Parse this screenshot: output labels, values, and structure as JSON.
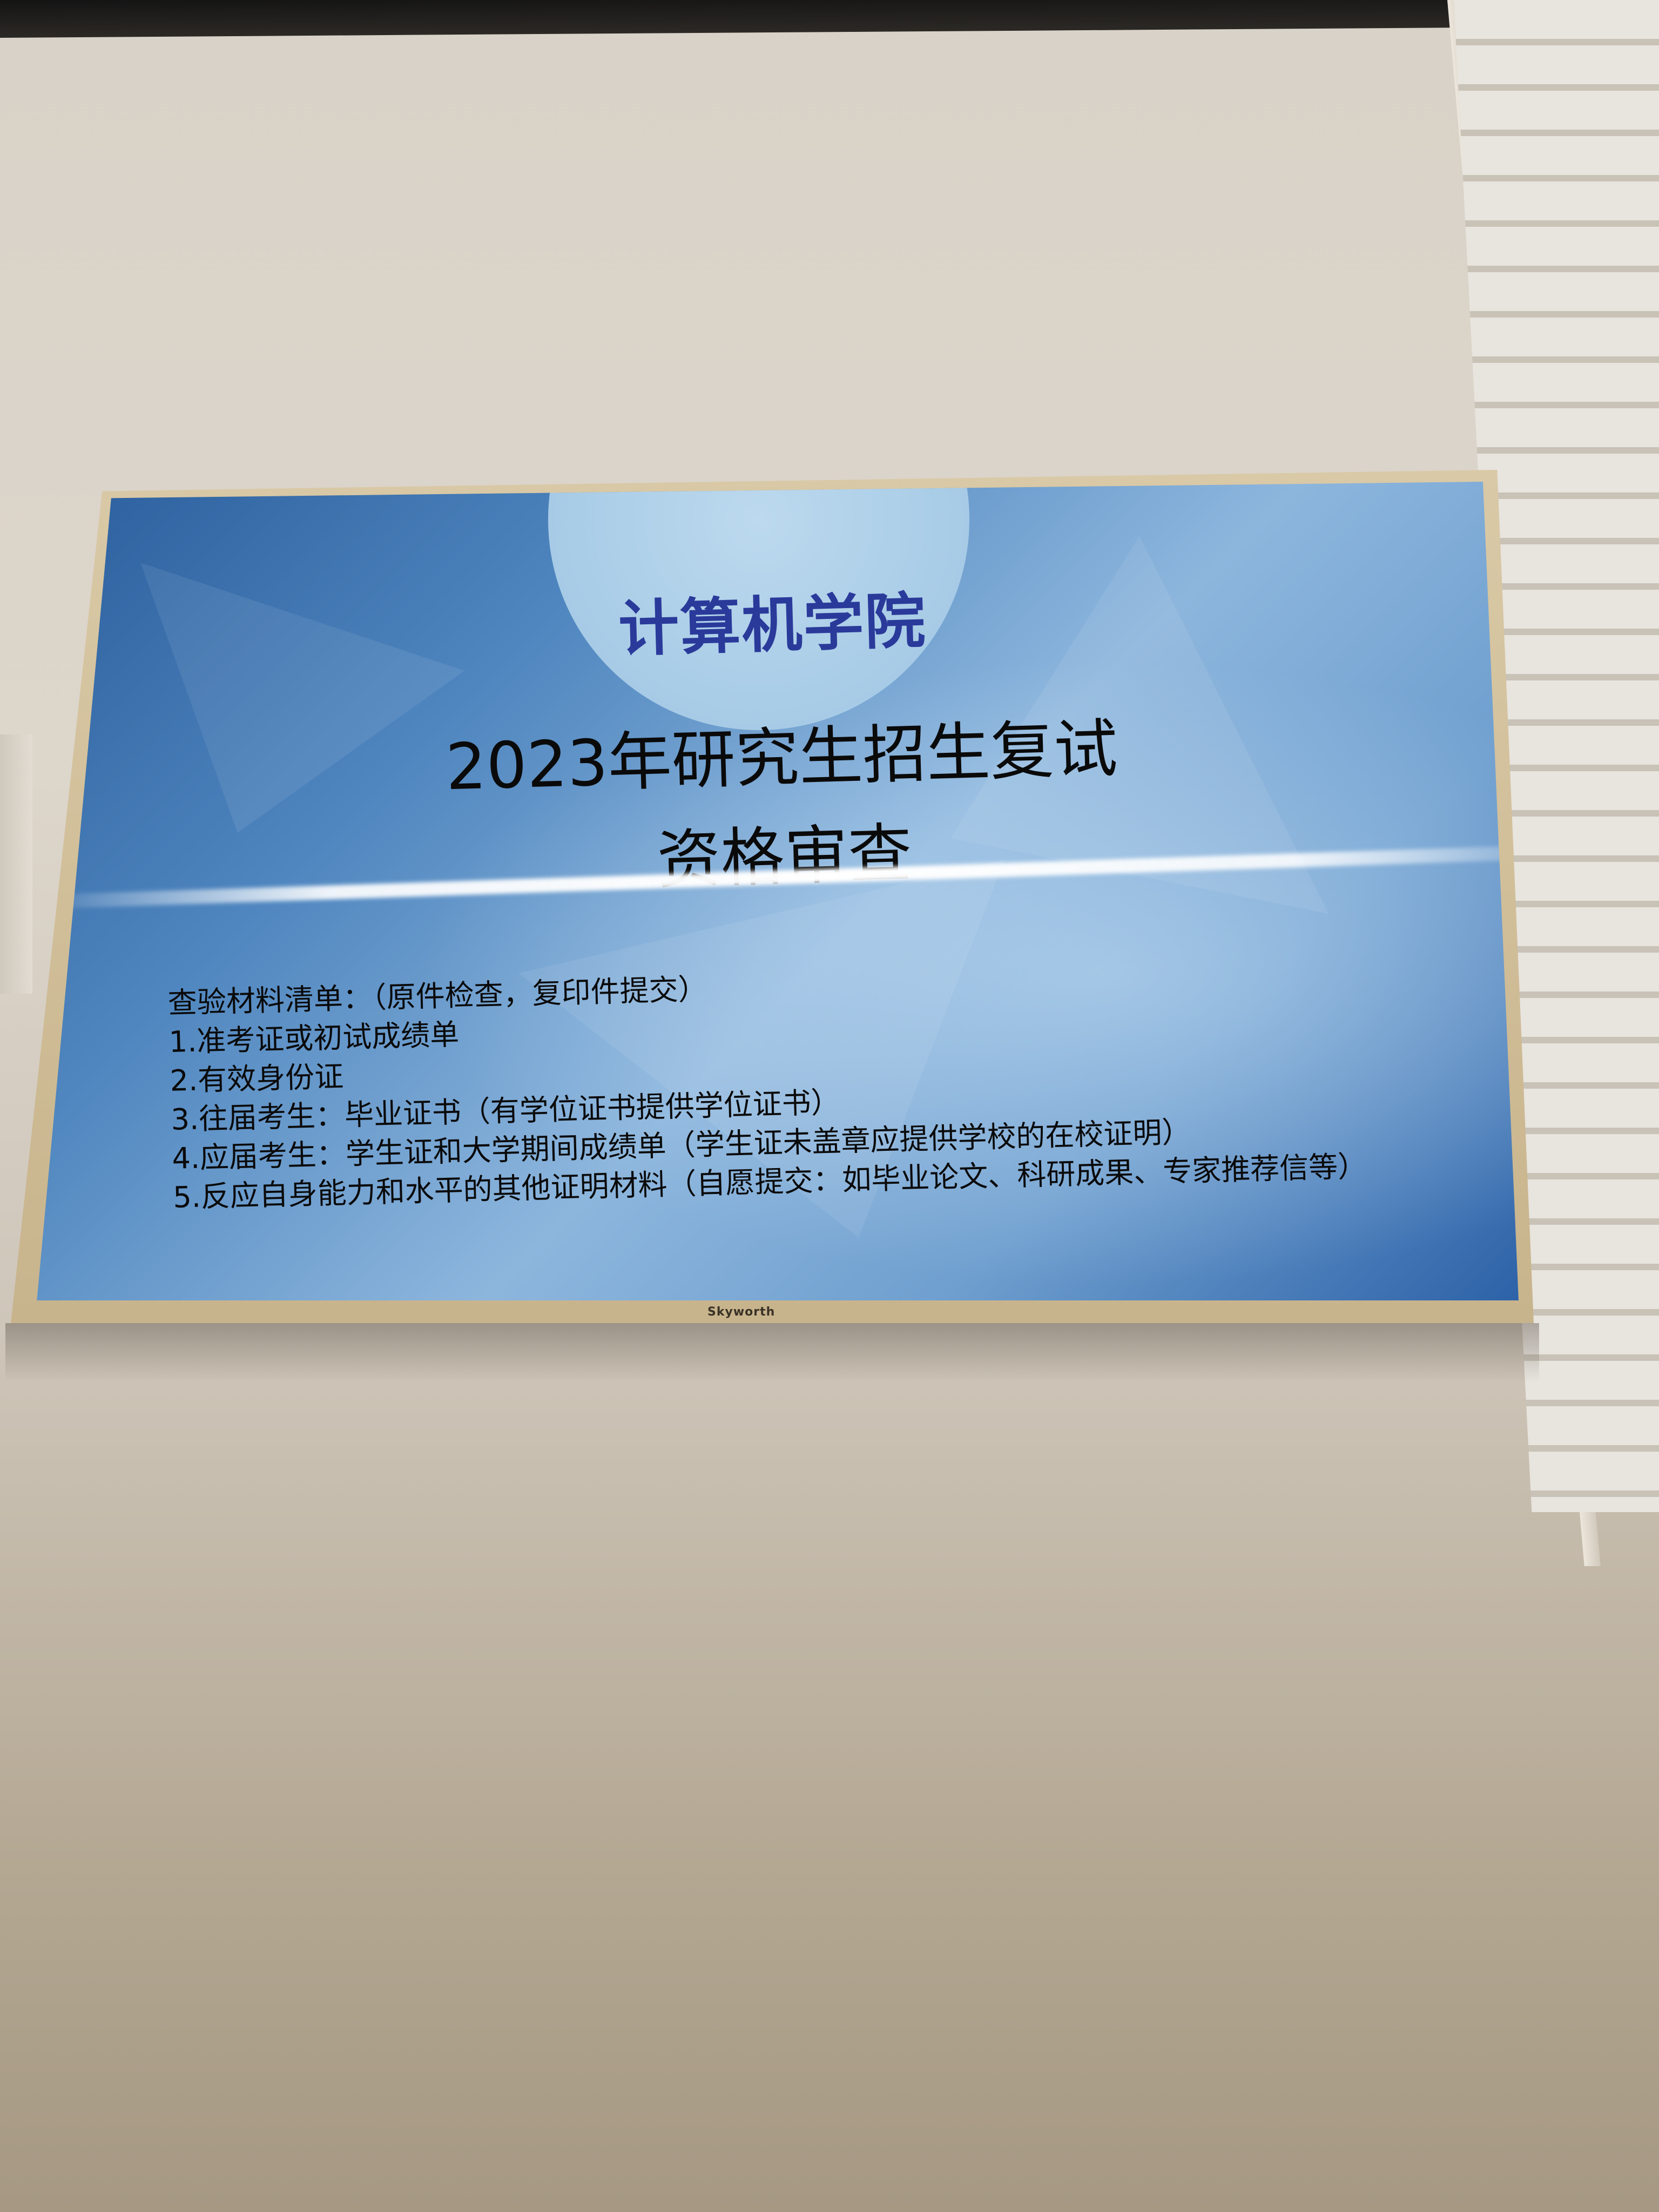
{
  "screen": {
    "header": "计算机学院",
    "title_line1": "2023年研究生招生复试",
    "title_line2": "资格审查",
    "checklist": {
      "heading": "查验材料清单：（原件检查，复印件提交）",
      "items": [
        "1.准考证或初试成绩单",
        "2.有效身份证",
        "3.往届考生：毕业证书（有学位证书提供学位证书）",
        "4.应届考生：学生证和大学期间成绩单（学生证未盖章应提供学校的在校证明）",
        "5.反应自身能力和水平的其他证明材料（自愿提交：如毕业论文、科研成果、专家推荐信等）"
      ]
    }
  },
  "tv": {
    "brand": "Skyworth",
    "bezel_color": "#d4c39f",
    "screen_accent": "#4f86bf"
  }
}
